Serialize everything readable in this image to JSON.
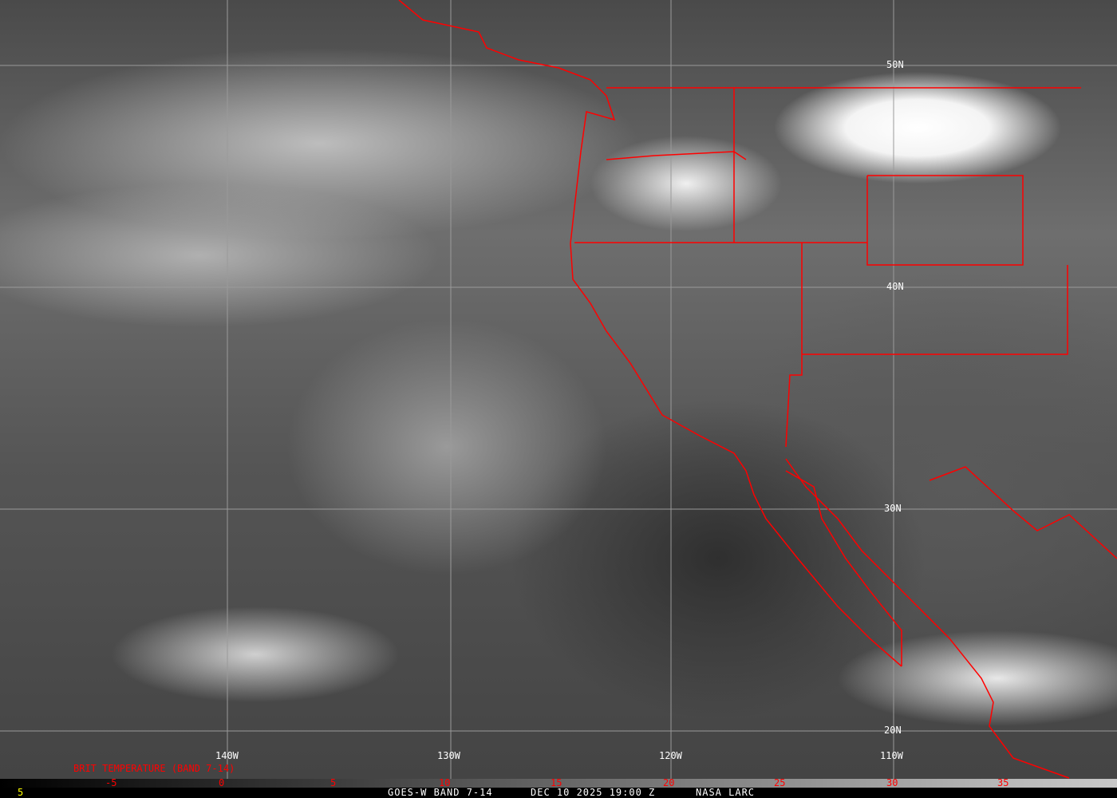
{
  "image": {
    "satellite_view": "GOES-W infrared difference imagery over US West Coast and eastern Pacific",
    "border_color": "#ff0000"
  },
  "grid": {
    "lon_labels": [
      "140W",
      "130W",
      "120W",
      "110W"
    ],
    "lat_labels": [
      "50N",
      "40N",
      "30N",
      "20N"
    ]
  },
  "colorbar": {
    "title": "BRIT TEMPERATURE (BAND 7-14)",
    "ticks": [
      "-5",
      "0",
      "5",
      "10",
      "15",
      "20",
      "25",
      "30",
      "35"
    ],
    "label_color": "#ff0000"
  },
  "footer": {
    "frame": "5",
    "satellite": "GOES-W BAND 7-14",
    "datetime": "DEC 10 2025 19:00 Z",
    "source": "NASA LARC"
  }
}
